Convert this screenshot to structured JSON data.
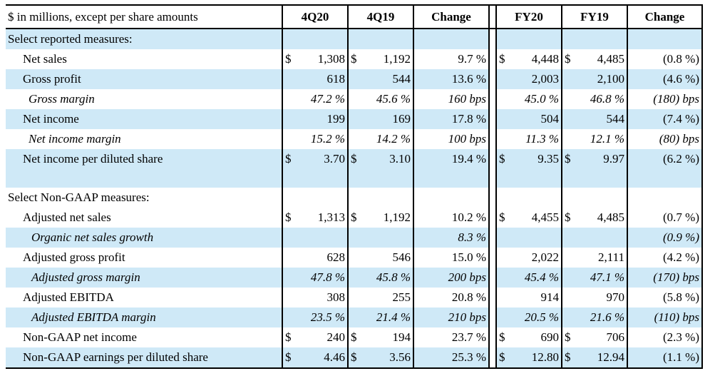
{
  "header": {
    "label": "$ in millions, except per share amounts",
    "cols": [
      "4Q20",
      "4Q19",
      "Change",
      "FY20",
      "FY19",
      "Change"
    ]
  },
  "section1": "Select reported measures:",
  "section2": "Select Non-GAAP measures:",
  "rows1": [
    {
      "label": "Net sales",
      "c1s": "$",
      "c1": "1,308",
      "c2s": "$",
      "c2": "1,192",
      "c3": "9.7 %",
      "c4s": "$",
      "c4": "4,448",
      "c5s": "$",
      "c5": "4,485",
      "c6": "(0.8 %)"
    },
    {
      "label": "Gross profit",
      "c1s": "",
      "c1": "618",
      "c2s": "",
      "c2": "544",
      "c3": "13.6 %",
      "c4s": "",
      "c4": "2,003",
      "c5s": "",
      "c5": "2,100",
      "c6": "(4.6 %)"
    },
    {
      "label": "Gross margin",
      "c1s": "",
      "c1": "47.2 %",
      "c2s": "",
      "c2": "45.6 %",
      "c3": "160 bps",
      "c4s": "",
      "c4": "45.0 %",
      "c5s": "",
      "c5": "46.8 %",
      "c6": "(180) bps"
    },
    {
      "label": "Net income",
      "c1s": "",
      "c1": "199",
      "c2s": "",
      "c2": "169",
      "c3": "17.8 %",
      "c4s": "",
      "c4": "504",
      "c5s": "",
      "c5": "544",
      "c6": "(7.4 %)"
    },
    {
      "label": "Net income margin",
      "c1s": "",
      "c1": "15.2 %",
      "c2s": "",
      "c2": "14.2 %",
      "c3": "100 bps",
      "c4s": "",
      "c4": "11.3 %",
      "c5s": "",
      "c5": "12.1 %",
      "c6": "(80) bps"
    },
    {
      "label": "Net income per diluted share",
      "c1s": "$",
      "c1": "3.70",
      "c2s": "$",
      "c2": "3.10",
      "c3": "19.4 %",
      "c4s": "$",
      "c4": "9.35",
      "c5s": "$",
      "c5": "9.97",
      "c6": "(6.2 %)"
    }
  ],
  "rows2": [
    {
      "label": "Adjusted net sales",
      "c1s": "$",
      "c1": "1,313",
      "c2s": "$",
      "c2": "1,192",
      "c3": "10.2 %",
      "c4s": "$",
      "c4": "4,455",
      "c5s": "$",
      "c5": "4,485",
      "c6": "(0.7 %)"
    },
    {
      "label": "Organic net sales growth",
      "c1s": "",
      "c1": "",
      "c2s": "",
      "c2": "",
      "c3": "8.3 %",
      "c4s": "",
      "c4": "",
      "c5s": "",
      "c5": "",
      "c6": "(0.9 %)"
    },
    {
      "label": "Adjusted gross profit",
      "c1s": "",
      "c1": "628",
      "c2s": "",
      "c2": "546",
      "c3": "15.0 %",
      "c4s": "",
      "c4": "2,022",
      "c5s": "",
      "c5": "2,111",
      "c6": "(4.2 %)"
    },
    {
      "label": "Adjusted gross margin",
      "c1s": "",
      "c1": "47.8 %",
      "c2s": "",
      "c2": "45.8 %",
      "c3": "200 bps",
      "c4s": "",
      "c4": "45.4 %",
      "c5s": "",
      "c5": "47.1 %",
      "c6": "(170) bps"
    },
    {
      "label": "Adjusted EBITDA",
      "c1s": "",
      "c1": "308",
      "c2s": "",
      "c2": "255",
      "c3": "20.8 %",
      "c4s": "",
      "c4": "914",
      "c5s": "",
      "c5": "970",
      "c6": "(5.8 %)"
    },
    {
      "label": "Adjusted EBITDA margin",
      "c1s": "",
      "c1": "23.5 %",
      "c2s": "",
      "c2": "21.4 %",
      "c3": "210 bps",
      "c4s": "",
      "c4": "20.5 %",
      "c5s": "",
      "c5": "21.6 %",
      "c6": "(110) bps"
    },
    {
      "label": "Non-GAAP net income",
      "c1s": "$",
      "c1": "240",
      "c2s": "$",
      "c2": "194",
      "c3": "23.7 %",
      "c4s": "$",
      "c4": "690",
      "c5s": "$",
      "c5": "706",
      "c6": "(2.3 %)"
    },
    {
      "label": "Non-GAAP earnings per diluted share",
      "c1s": "$",
      "c1": "4.46",
      "c2s": "$",
      "c2": "3.56",
      "c3": "25.3 %",
      "c4s": "$",
      "c4": "12.80",
      "c5s": "$",
      "c5": "12.94",
      "c6": "(1.1 %)"
    }
  ],
  "colors": {
    "shade": "#cfe9f7",
    "border": "#000000"
  }
}
